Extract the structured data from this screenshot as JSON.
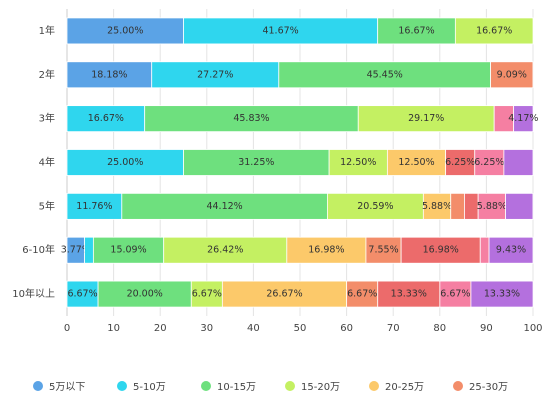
{
  "chart_data": {
    "type": "stacked-bar-horizontal",
    "categories": [
      "1年",
      "2年",
      "3年",
      "4年",
      "5年",
      "6-10年",
      "10年以上"
    ],
    "series": [
      {
        "name": "5万以下",
        "color": "#5ba3e6",
        "values": [
          25.0,
          18.18,
          0,
          0,
          0,
          3.77,
          0
        ],
        "value_labels": [
          "25.00%",
          "18.18%",
          null,
          null,
          null,
          "3.77%",
          null
        ]
      },
      {
        "name": "5-10万",
        "color": "#2fd6ee",
        "values": [
          41.67,
          27.27,
          16.67,
          25.0,
          11.76,
          1.89,
          6.67
        ],
        "value_labels": [
          "41.67%",
          "27.27%",
          "16.67%",
          "25.00%",
          "11.76%",
          null,
          "6.67%"
        ]
      },
      {
        "name": "10-15万",
        "color": "#6ee07e",
        "values": [
          16.67,
          45.45,
          45.83,
          31.25,
          44.12,
          15.09,
          20.0
        ],
        "value_labels": [
          "16.67%",
          "45.45%",
          "45.83%",
          "31.25%",
          "44.12%",
          "15.09%",
          "20.00%"
        ]
      },
      {
        "name": "15-20万",
        "color": "#c4f062",
        "values": [
          16.67,
          0,
          29.17,
          12.5,
          20.59,
          26.42,
          6.67
        ],
        "value_labels": [
          "16.67%",
          null,
          "29.17%",
          "12.50%",
          "20.59%",
          "26.42%",
          "6.67%"
        ]
      },
      {
        "name": "20-25万",
        "color": "#fcc96a",
        "values": [
          0,
          0,
          0,
          12.5,
          5.88,
          16.98,
          26.67
        ],
        "value_labels": [
          null,
          null,
          null,
          "12.50%",
          "5.88%",
          "16.98%",
          "26.67%"
        ]
      },
      {
        "name": "25-30万",
        "color": "#f38d6a",
        "values": [
          0,
          9.09,
          0,
          0,
          2.94,
          7.55,
          6.67
        ],
        "value_labels": [
          null,
          "9.09%",
          null,
          null,
          null,
          "7.55%",
          "6.67%"
        ]
      },
      {
        "color": "#ec6b6b",
        "values": [
          0,
          0,
          0,
          6.25,
          2.94,
          16.98,
          13.33
        ],
        "value_labels": [
          null,
          null,
          null,
          "6.25%",
          null,
          "16.98%",
          "13.33%"
        ]
      },
      {
        "color": "#f57fa2",
        "values": [
          0,
          0,
          4.17,
          6.25,
          5.88,
          1.89,
          6.67
        ],
        "value_labels": [
          null,
          null,
          null,
          "6.25%",
          "5.88%",
          null,
          "6.67%"
        ]
      },
      {
        "color": "#b470de",
        "values": [
          0,
          0,
          4.17,
          6.25,
          5.88,
          9.43,
          13.33
        ],
        "value_labels": [
          null,
          null,
          "4.17%",
          null,
          null,
          "9.43%",
          "13.33%"
        ]
      }
    ],
    "xlim": [
      0,
      100
    ],
    "xticks": [
      0,
      10,
      20,
      30,
      40,
      50,
      60,
      70,
      80,
      90,
      100
    ],
    "grid": true
  }
}
